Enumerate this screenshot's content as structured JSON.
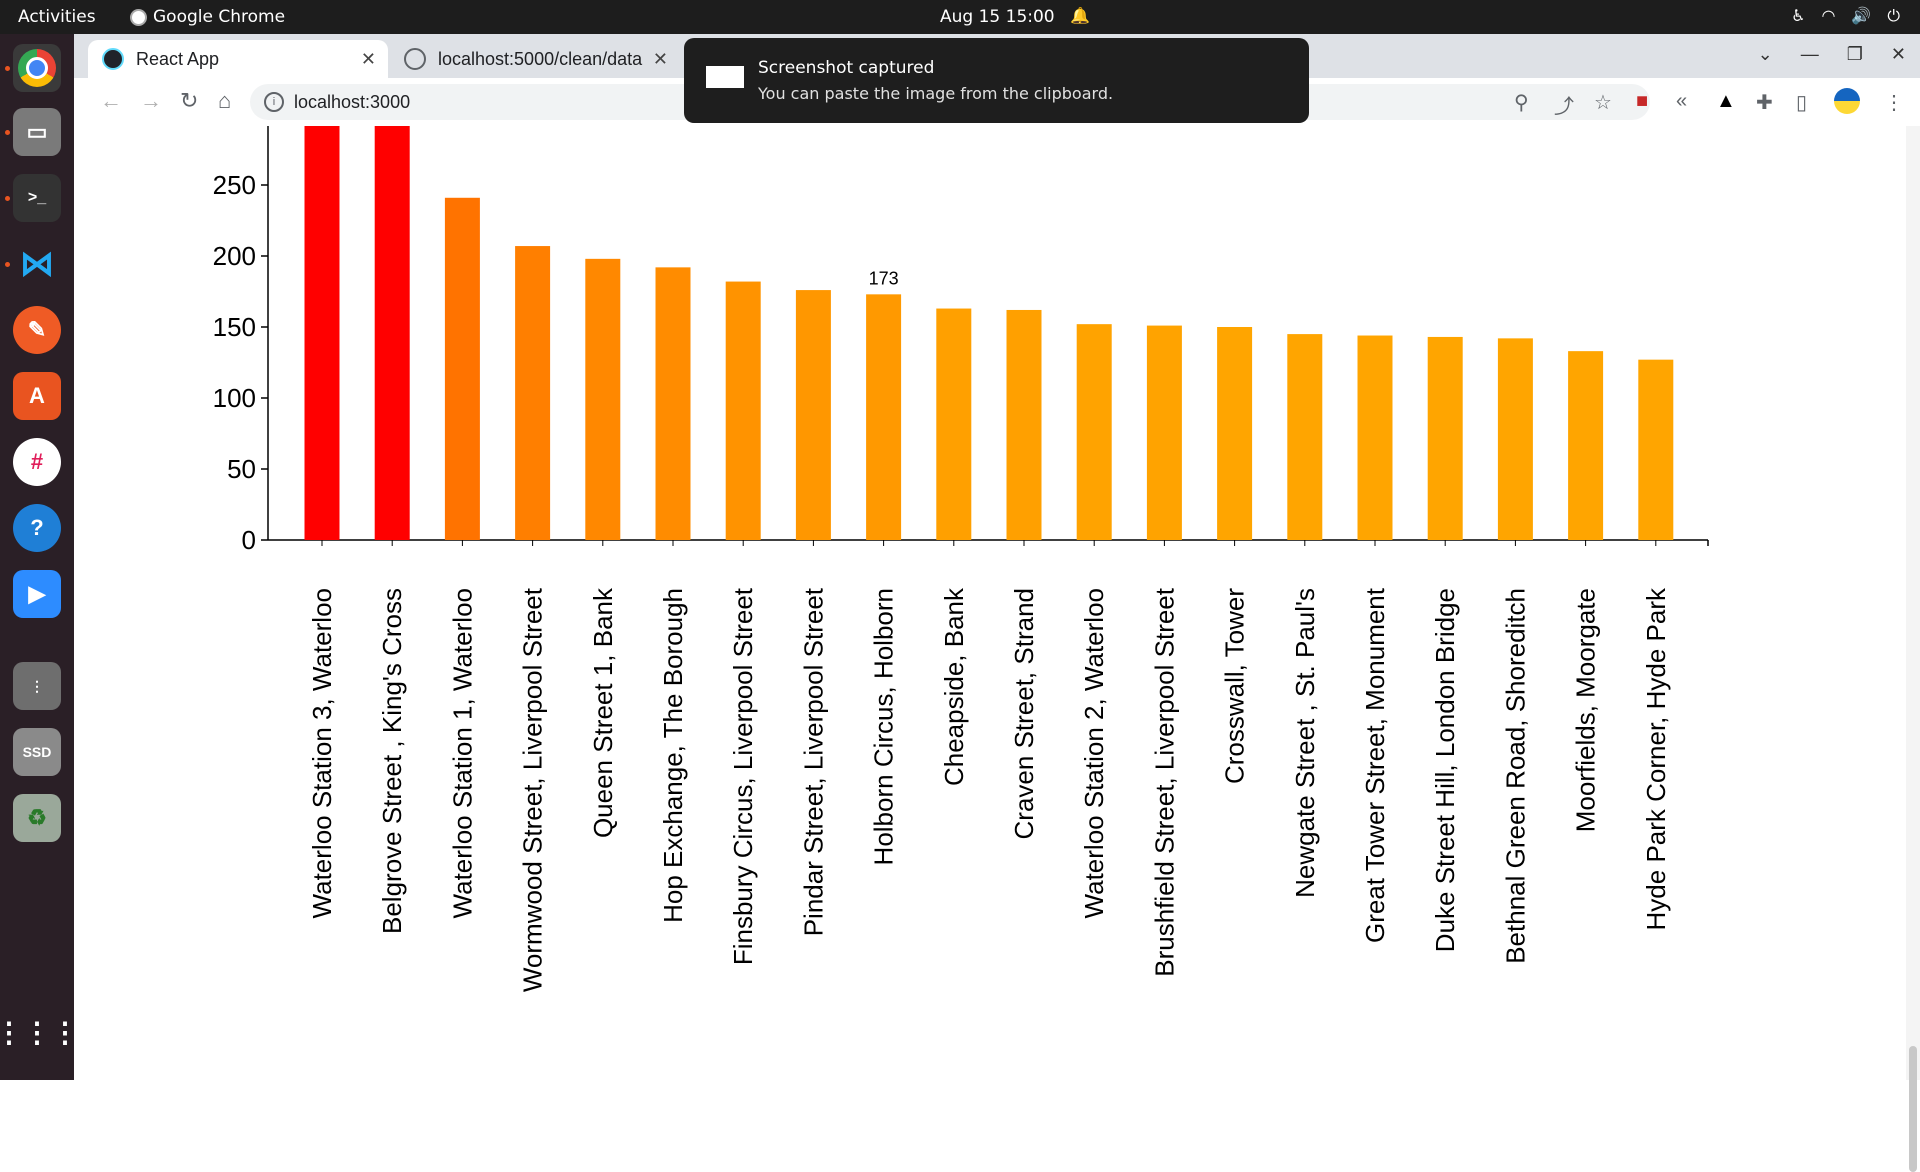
{
  "topbar": {
    "activities": "Activities",
    "app_name": "Google Chrome",
    "clock": "Aug 15  15:00"
  },
  "browser": {
    "tabs": [
      {
        "label": "React App",
        "active": true
      },
      {
        "label": "localhost:5000/clean/data",
        "active": false
      }
    ],
    "url": "localhost:3000"
  },
  "notification": {
    "title": "Screenshot captured",
    "body": "You can paste the image from the clipboard."
  },
  "dock": {
    "items": [
      "chrome-icon",
      "files-icon",
      "terminal-icon",
      "vscode-icon",
      "postman-icon",
      "app-center-icon",
      "slack-icon",
      "help-icon",
      "zoom-icon",
      "disks-icon",
      "ssd-icon",
      "trash-icon",
      "show-apps-icon"
    ]
  },
  "chart_data": {
    "type": "bar",
    "categories": [
      "Waterloo Station 3, Waterloo",
      "Belgrove Street , King's Cross",
      "Waterloo Station 1, Waterloo",
      "Wormwood Street, Liverpool Street",
      "Queen Street 1, Bank",
      "Hop Exchange, The Borough",
      "Finsbury Circus, Liverpool Street",
      "Pindar Street, Liverpool Street",
      "Holborn Circus, Holborn",
      "Cheapside, Bank",
      "Craven Street, Strand",
      "Waterloo Station 2, Waterloo",
      "Brushfield Street, Liverpool Street",
      "Crosswall, Tower",
      "Newgate Street , St. Paul's",
      "Great Tower Street, Monument",
      "Duke Street Hill, London Bridge",
      "Bethnal Green Road, Shoreditch",
      "Moorfields, Moorgate",
      "Hyde Park Corner, Hyde Park"
    ],
    "values": [
      300,
      300,
      241,
      207,
      198,
      192,
      182,
      176,
      173,
      163,
      162,
      152,
      151,
      150,
      145,
      144,
      143,
      142,
      133,
      127
    ],
    "colors": [
      "#ff0000",
      "#ff0000",
      "#ff7300",
      "#ff7f00",
      "#ff8800",
      "#ff8c00",
      "#ff9300",
      "#ff9700",
      "#ff9900",
      "#ffa000",
      "#ffa000",
      "#ffa300",
      "#ffa300",
      "#ffa500",
      "#ffa500",
      "#ffa500",
      "#ffa500",
      "#ffa500",
      "#ffa500",
      "#ffa500"
    ],
    "yticks": [
      0,
      50,
      100,
      150,
      200,
      250
    ],
    "ylim": [
      0,
      290
    ],
    "labeled_value": "173",
    "labeled_index": 8
  }
}
